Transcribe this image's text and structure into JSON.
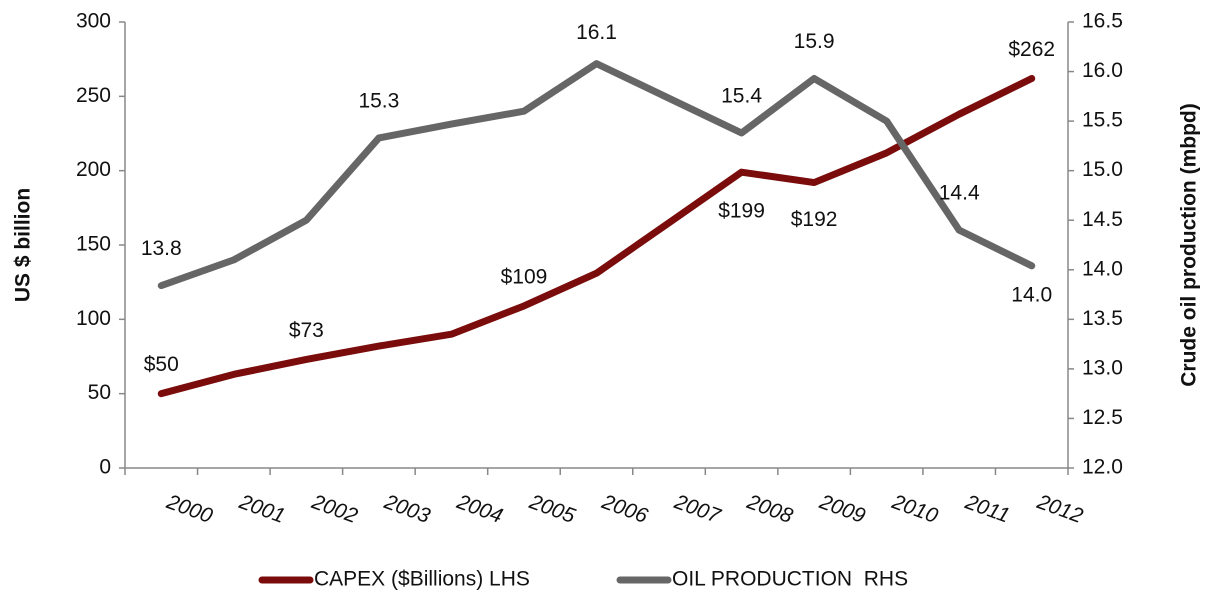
{
  "chart_data": {
    "type": "line",
    "categories": [
      "2000",
      "2001",
      "2002",
      "2003",
      "2004",
      "2005",
      "2006",
      "2007",
      "2008",
      "2009",
      "2010",
      "2011",
      "2012"
    ],
    "series": [
      {
        "name": "CAPEX ($Billions) LHS",
        "color": "#7b0c0c",
        "values": [
          50,
          63,
          73,
          82,
          90,
          109,
          131,
          165,
          199,
          192,
          212,
          238,
          262
        ],
        "value_labels": [
          "$50",
          null,
          "$73",
          null,
          null,
          "$109",
          null,
          null,
          "$199",
          "$192",
          null,
          null,
          "$262"
        ]
      },
      {
        "name": "OIL PRODUCTION  RHS",
        "color": "#666666",
        "axis": "y2",
        "values": [
          13.84,
          14.1,
          14.5,
          15.33,
          15.47,
          15.6,
          16.08,
          15.73,
          15.38,
          15.93,
          15.5,
          14.4,
          14.04
        ],
        "value_labels": [
          "13.8",
          null,
          null,
          "15.3",
          null,
          null,
          "16.1",
          null,
          "15.4",
          "15.9",
          null,
          "14.4",
          "14.0"
        ]
      }
    ],
    "y_label": "US $ billion",
    "y2_label": "Crude oil production (mbpd)",
    "ylim": [
      0,
      300
    ],
    "yticks": [
      0,
      50,
      100,
      150,
      200,
      250,
      300
    ],
    "y2lim": [
      12,
      16.5
    ],
    "y2ticks": [
      {
        "value": 12,
        "label": "12.0"
      },
      {
        "value": 12.5,
        "label": "12.5"
      },
      {
        "value": 13,
        "label": "13.0"
      },
      {
        "value": 13.5,
        "label": "13.5"
      },
      {
        "value": 14,
        "label": "14.0"
      },
      {
        "value": 14.5,
        "label": "14.5"
      },
      {
        "value": 15,
        "label": "15.0"
      },
      {
        "value": 15.5,
        "label": "15.5"
      },
      {
        "value": 16,
        "label": "16.0"
      },
      {
        "value": 16.5,
        "label": "16.5"
      }
    ],
    "grid": false,
    "legend": "bottom"
  }
}
